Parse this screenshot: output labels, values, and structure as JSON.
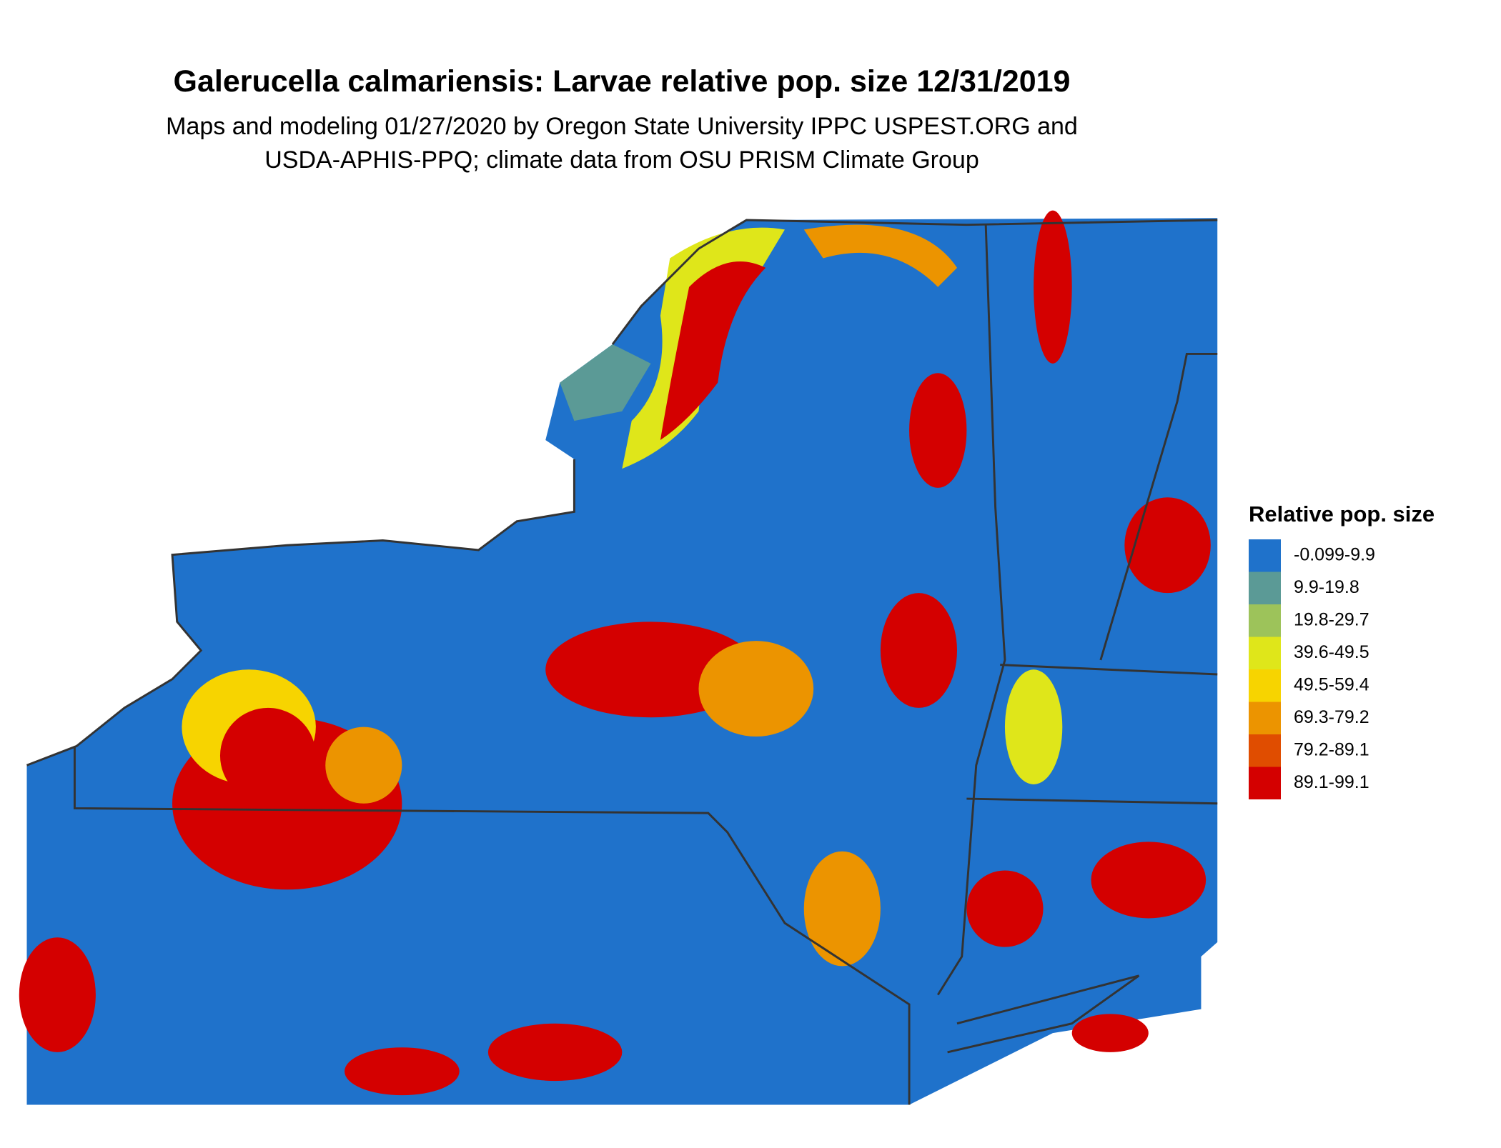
{
  "title": "Galerucella calmariensis: Larvae relative pop. size 12/31/2019",
  "subtitle": [
    "Maps and modeling 01/27/2020 by Oregon State University IPPC USPEST.ORG and",
    "USDA-APHIS-PPQ; climate data from OSU PRISM Climate Group"
  ],
  "legend": {
    "title": "Relative pop. size",
    "items": [
      {
        "label": "-0.099-9.9",
        "color": "#1f72cb"
      },
      {
        "label": "9.9-19.8",
        "color": "#5b9a96"
      },
      {
        "label": "19.8-29.7",
        "color": "#9dc35a"
      },
      {
        "label": "39.6-49.5",
        "color": "#dfe61a"
      },
      {
        "label": "49.5-59.4",
        "color": "#f7d400"
      },
      {
        "label": "69.3-79.2",
        "color": "#ec9400"
      },
      {
        "label": "79.2-89.1",
        "color": "#e04d00"
      },
      {
        "label": "89.1-99.1",
        "color": "#d40000"
      }
    ]
  }
}
